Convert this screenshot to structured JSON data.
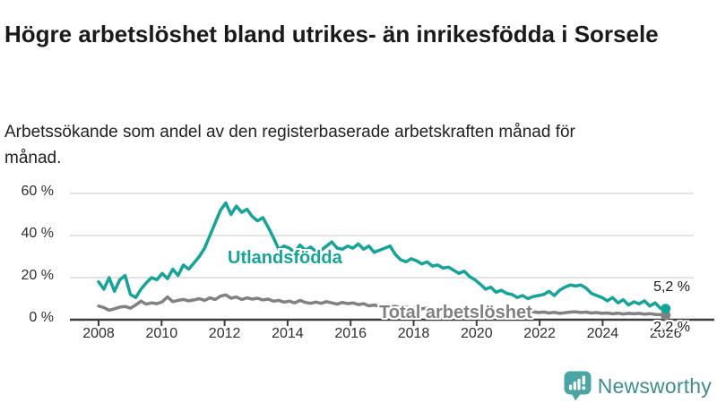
{
  "header": {
    "title": "Högre arbetslöshet bland utrikes- än inrikesfödda i Sorsele",
    "subtitle": "Arbetssökande som andel av den registerbaserade arbetskraften månad för månad."
  },
  "colors": {
    "accent_teal": "#17a398",
    "series_gray": "#818181",
    "axis": "#3d3d3d",
    "gridline": "#dadada",
    "title_text": "#1a1a1a",
    "tick_text": "#2e2e2e"
  },
  "chart_data": {
    "type": "line",
    "unit": "%",
    "x_start": 2008.0,
    "x_end": 2026.0,
    "grid": "horizontal",
    "y_axis": {
      "ticks": [
        0,
        20,
        40,
        60
      ],
      "tick_labels": [
        "0 %",
        "20 %",
        "40 %",
        "60 %"
      ],
      "ylim": [
        0,
        62
      ]
    },
    "x_axis": {
      "ticks": [
        2008,
        2010,
        2012,
        2014,
        2016,
        2018,
        2020,
        2022,
        2024,
        2026
      ],
      "tick_labels": [
        "2008",
        "2010",
        "2012",
        "2014",
        "2016",
        "2018",
        "2020",
        "2022",
        "2024",
        "2026"
      ]
    },
    "series": [
      {
        "name": "Utlandsfödda",
        "color": "#17a398",
        "end_label": "5,2 %",
        "end_value": 5.2,
        "values": [
          18,
          14.5,
          20,
          13.5,
          19,
          21,
          12,
          10.5,
          14.5,
          17.5,
          20,
          19,
          22,
          19.5,
          24,
          21,
          26,
          24,
          27,
          30,
          34,
          40,
          46,
          52,
          55.5,
          50,
          54,
          51,
          52.5,
          49,
          47,
          48.5,
          44,
          39,
          33.5,
          35,
          34,
          32,
          35.5,
          33,
          34.5,
          32.5,
          33,
          35,
          37,
          34,
          33.5,
          35,
          34,
          36,
          33.5,
          35,
          32,
          33,
          34,
          35,
          31,
          28.5,
          27.5,
          29,
          28,
          26.5,
          27.5,
          25.5,
          26,
          24.5,
          25,
          23.5,
          22,
          23,
          20.5,
          19,
          17,
          14.5,
          15.5,
          13,
          14,
          12.5,
          12,
          10.5,
          11.5,
          10,
          11,
          11.5,
          12,
          13.5,
          11.5,
          14,
          15.5,
          16.5,
          16,
          16.5,
          15,
          12.5,
          11.5,
          10.5,
          9,
          10.5,
          8,
          9.5,
          7,
          8.5,
          7.5,
          9,
          6.5,
          8,
          5.5,
          5.2
        ]
      },
      {
        "name": "Total arbetslöshet",
        "color": "#818181",
        "end_label": "2,2 %",
        "end_value": 2.2,
        "values": [
          6.5,
          5.8,
          4.5,
          5.2,
          6,
          6.3,
          5.5,
          7,
          8.8,
          7.4,
          8,
          7.6,
          8.5,
          10.8,
          8.6,
          9.2,
          9.6,
          9,
          9.4,
          10,
          9.2,
          10.4,
          9.6,
          11.2,
          11.8,
          10.2,
          10.8,
          9.6,
          10.4,
          9.8,
          10.2,
          9.4,
          9.8,
          8.8,
          9.2,
          8.4,
          8.8,
          8,
          9.2,
          8.2,
          7.8,
          8.4,
          7.8,
          8.6,
          8,
          7.4,
          8.2,
          7.6,
          8,
          7.2,
          7.6,
          6.6,
          7,
          6.4,
          6.8,
          6,
          6.4,
          5.6,
          6,
          5.4,
          5.8,
          5.2,
          5.6,
          4.8,
          5.2,
          4.6,
          5,
          4.4,
          4.8,
          4.2,
          4.6,
          4.4,
          5,
          5.6,
          5.2,
          4.8,
          5.2,
          4.6,
          4.4,
          4,
          4.2,
          3.6,
          3.8,
          3.4,
          3.6,
          3.2,
          3.5,
          3,
          3.3,
          3.6,
          3.8,
          3.4,
          3.6,
          3.2,
          3.4,
          3,
          3.2,
          2.8,
          3.1,
          2.7,
          3,
          2.8,
          3,
          2.6,
          2.9,
          2.5,
          2.4,
          2.2
        ]
      }
    ]
  },
  "logo": {
    "text": "Newsworthy",
    "icon_color": "#4aa5a3",
    "text_color": "#3f8e8c"
  }
}
